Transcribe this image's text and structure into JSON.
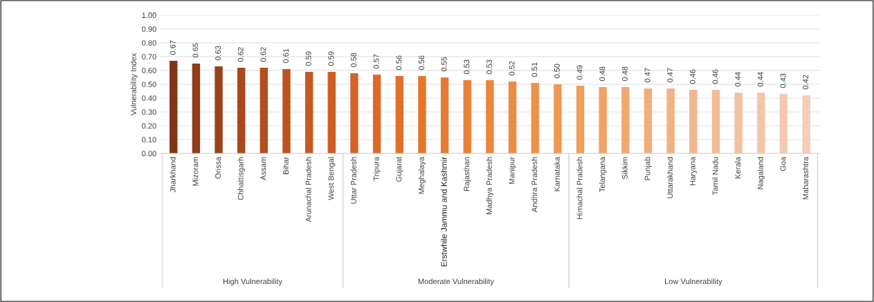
{
  "chart_data": {
    "type": "bar",
    "ylabel": "Vulnerability Index",
    "categories": [
      "Jharkhand",
      "Mizoram",
      "Orissa",
      "Chhattisgarh",
      "Assam",
      "Bihar",
      "Arunachal Pradesh",
      "West Bengal",
      "Uttar Pradesh",
      "Tripura",
      "Gujarat",
      "Meghalaya",
      "Erstwhile Jammu and Kashmir",
      "Rajasthan",
      "Madhya Pradesh",
      "Manipur",
      "Andhra Pradesh",
      "Karnataka",
      "Himachal Pradesh",
      "Telangana",
      "Sikkim",
      "Punjab",
      "Uttarakhand",
      "Haryana",
      "Tamil Nadu",
      "Kerala",
      "Nagaland",
      "Goa",
      "Maharashtra"
    ],
    "values": [
      0.67,
      0.65,
      0.63,
      0.62,
      0.62,
      0.61,
      0.59,
      0.59,
      0.58,
      0.57,
      0.56,
      0.56,
      0.55,
      0.53,
      0.53,
      0.52,
      0.51,
      0.5,
      0.49,
      0.48,
      0.48,
      0.47,
      0.47,
      0.46,
      0.46,
      0.44,
      0.44,
      0.43,
      0.42
    ],
    "colors": [
      "#7f3517",
      "#8f3c18",
      "#9c421a",
      "#a8481c",
      "#b34e1e",
      "#bd5420",
      "#c65a22",
      "#cd5f24",
      "#d46426",
      "#da6a28",
      "#e0702b",
      "#e4752e",
      "#e77a32",
      "#e98037",
      "#eb863d",
      "#ec8c44",
      "#ed924b",
      "#ee9853",
      "#ef9e5c",
      "#f0a366",
      "#f0a870",
      "#f1ad7a",
      "#f1b284",
      "#f2b78d",
      "#f2bc97",
      "#f3c1a1",
      "#f3c5aa",
      "#f4c9b2",
      "#f5cdb9"
    ],
    "ylim": [
      0,
      1
    ],
    "yticks": [
      {
        "value": 0,
        "label": "0.00"
      },
      {
        "value": 0.1,
        "label": "0.10"
      },
      {
        "value": 0.2,
        "label": "0.20"
      },
      {
        "value": 0.3,
        "label": "0.30"
      },
      {
        "value": 0.4,
        "label": "0.40"
      },
      {
        "value": 0.5,
        "label": "0.50"
      },
      {
        "value": 0.6,
        "label": "0.60"
      },
      {
        "value": 0.7,
        "label": "0.70"
      },
      {
        "value": 0.8,
        "label": "0.80"
      },
      {
        "value": 0.9,
        "label": "0.90"
      },
      {
        "value": 1,
        "label": "1.00"
      }
    ],
    "grid": "y",
    "value_labels": [
      "0.67",
      "0.65",
      "0.63",
      "0.62",
      "0.62",
      "0.61",
      "0.59",
      "0.59",
      "0.58",
      "0.57",
      "0.56",
      "0.56",
      "0.55",
      "0.53",
      "0.53",
      "0.52",
      "0.51",
      "0.50",
      "0.49",
      "0.48",
      "0.48",
      "0.47",
      "0.47",
      "0.46",
      "0.46",
      "0.44",
      "0.44",
      "0.43",
      "0.42"
    ],
    "annotations": [
      "High Vulnerability",
      "Moderate Vulnerability",
      "Low Vulnerability"
    ]
  }
}
